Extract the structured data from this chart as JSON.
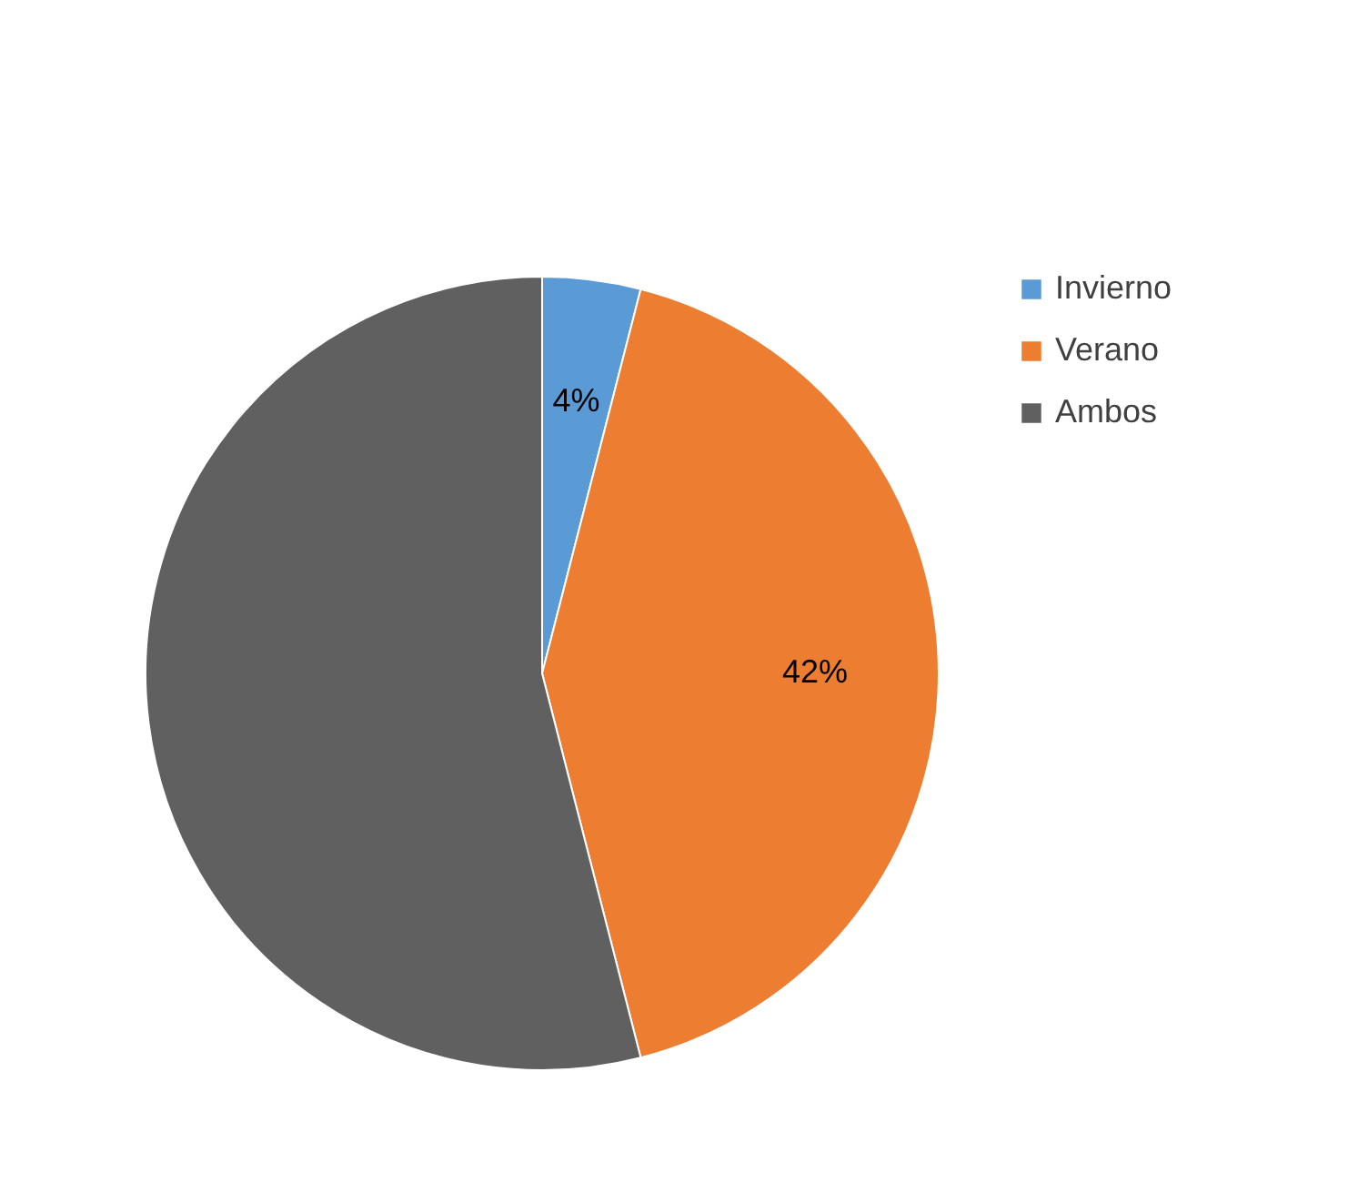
{
  "chart_data": {
    "type": "pie",
    "categories": [
      "Invierno",
      "Verano",
      "Ambos"
    ],
    "values": [
      4,
      42,
      54
    ],
    "colors": [
      "#5b9bd5",
      "#ed7d31",
      "#606060"
    ],
    "value_labels": [
      "4%",
      "42%",
      null
    ],
    "legend": "right"
  }
}
